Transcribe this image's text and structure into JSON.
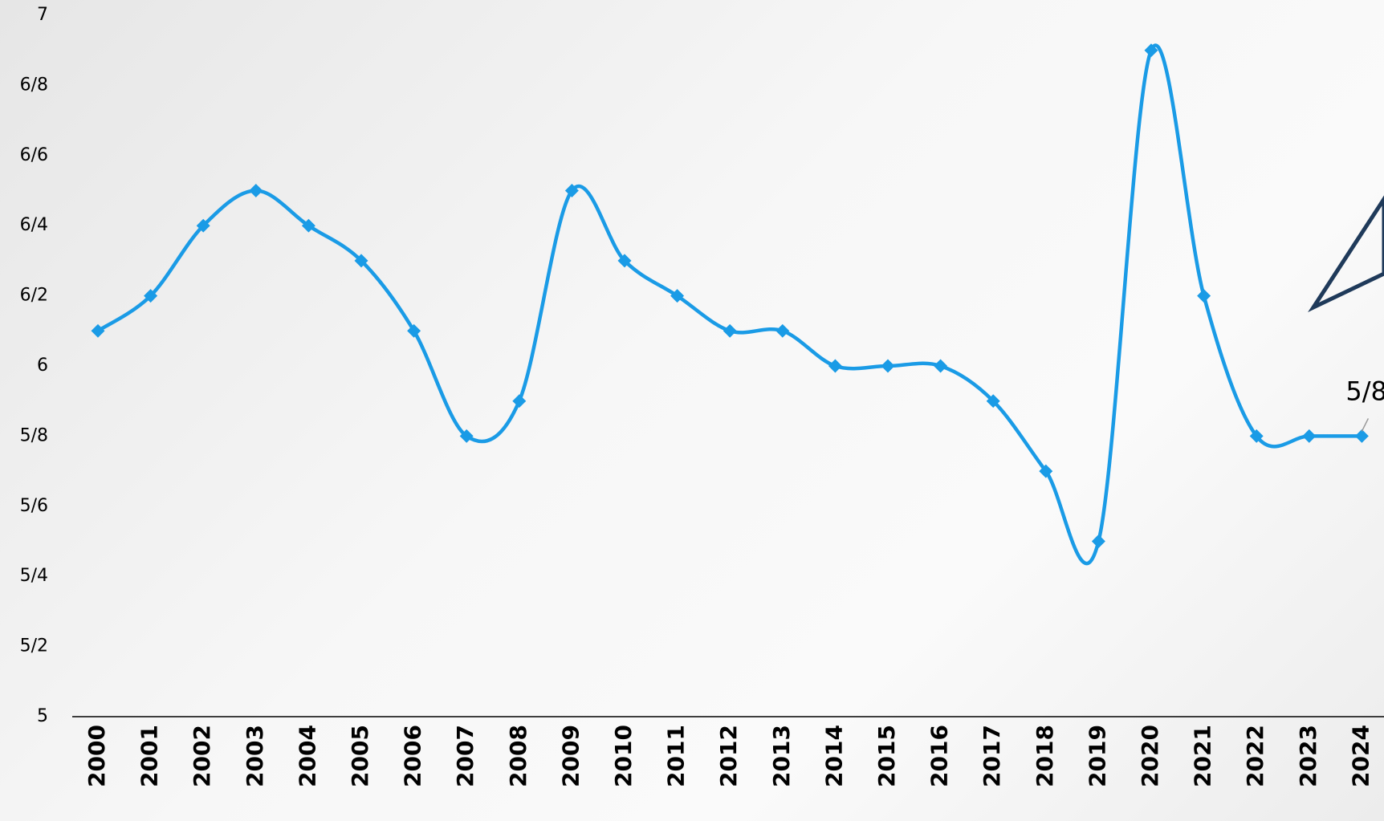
{
  "chart_data": {
    "type": "line",
    "categories": [
      "2000",
      "2001",
      "2002",
      "2003",
      "2004",
      "2005",
      "2006",
      "2007",
      "2008",
      "2009",
      "2010",
      "2011",
      "2012",
      "2013",
      "2014",
      "2015",
      "2016",
      "2017",
      "2018",
      "2019",
      "2020",
      "2021",
      "2022",
      "2023",
      "2024"
    ],
    "series": [
      {
        "color": "#1a9be6",
        "values": [
          6.1,
          6.2,
          6.4,
          6.5,
          6.4,
          6.3,
          6.1,
          5.8,
          5.9,
          6.5,
          6.3,
          6.2,
          6.1,
          6.1,
          6.0,
          6.0,
          6.0,
          5.9,
          5.7,
          5.5,
          6.9,
          6.2,
          5.8,
          5.8,
          5.8
        ],
        "value_labels": [
          null,
          null,
          null,
          null,
          null,
          null,
          null,
          null,
          null,
          null,
          null,
          null,
          null,
          null,
          null,
          null,
          null,
          null,
          null,
          null,
          null,
          null,
          null,
          null,
          "5/8"
        ]
      }
    ],
    "ylim": [
      5,
      7
    ],
    "yticks": [
      5,
      {
        "value": 5.2,
        "label": "5/2"
      },
      {
        "value": 5.4,
        "label": "5/4"
      },
      {
        "value": 5.6,
        "label": "5/6"
      },
      {
        "value": 5.8,
        "label": "5/8"
      },
      6,
      {
        "value": 6.2,
        "label": "6/2"
      },
      {
        "value": 6.4,
        "label": "6/4"
      },
      {
        "value": 6.6,
        "label": "6/6"
      },
      {
        "value": 6.8,
        "label": "6/8"
      },
      7
    ],
    "grid": false
  }
}
